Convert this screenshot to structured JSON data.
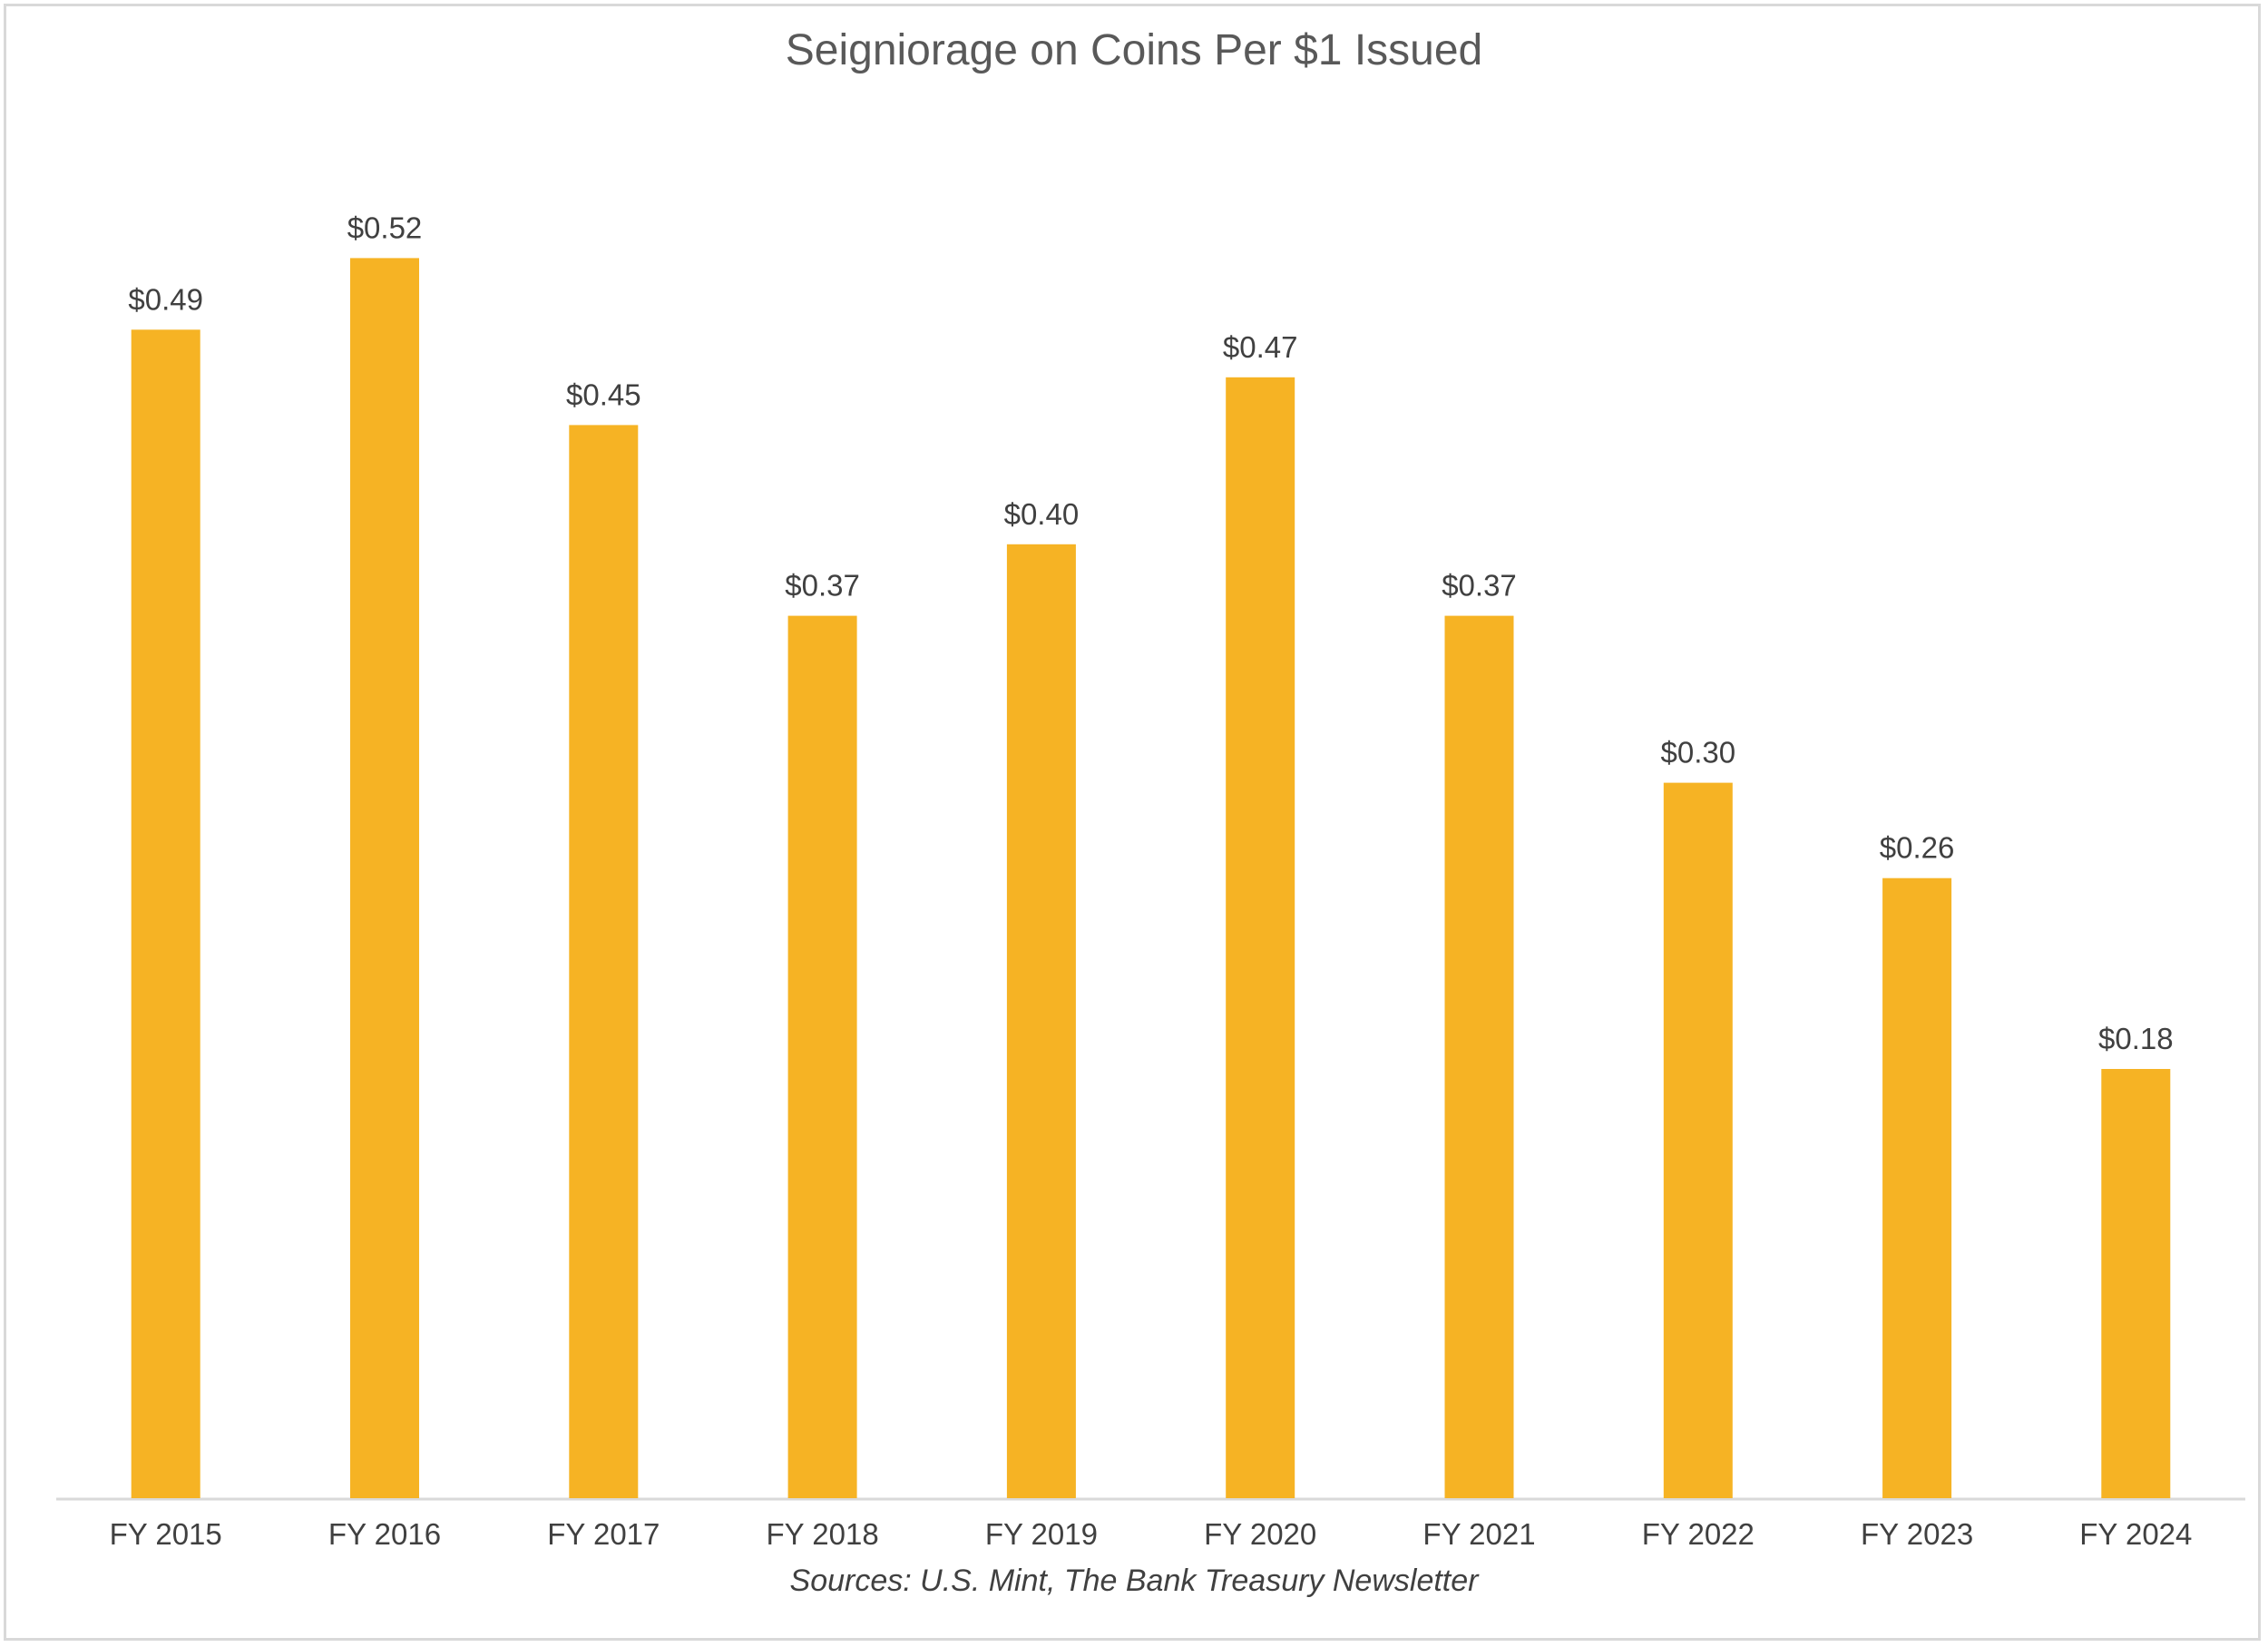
{
  "chart_data": {
    "type": "bar",
    "title": "Seigniorage on Coins Per $1 Issued",
    "source": "Sources: U.S. Mint, The Bank Treasury Newsletter",
    "categories": [
      "FY 2015",
      "FY 2016",
      "FY 2017",
      "FY 2018",
      "FY 2019",
      "FY 2020",
      "FY 2021",
      "FY 2022",
      "FY 2023",
      "FY 2024"
    ],
    "values": [
      0.49,
      0.52,
      0.45,
      0.37,
      0.4,
      0.47,
      0.37,
      0.3,
      0.26,
      0.18
    ],
    "data_labels": [
      "$0.49",
      "$0.52",
      "$0.45",
      "$0.37",
      "$0.40",
      "$0.47",
      "$0.37",
      "$0.30",
      "$0.26",
      "$0.18"
    ],
    "xlabel": "",
    "ylabel": "",
    "ylim": [
      0,
      0.6
    ],
    "grid": false,
    "legend": "none",
    "bar_color": "#F6B324"
  }
}
